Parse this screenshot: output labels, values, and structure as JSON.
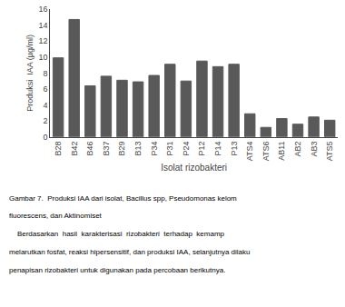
{
  "chart_data": {
    "type": "bar",
    "categories": [
      "B28",
      "B42",
      "B46",
      "B37",
      "B29",
      "B13",
      "P34",
      "P31",
      "P24",
      "P12",
      "P14",
      "P13",
      "ATS4",
      "ATS6",
      "AB11",
      "AB2",
      "AB3",
      "ATS5"
    ],
    "values": [
      9.9,
      14.7,
      6.4,
      7.6,
      7.1,
      6.9,
      7.7,
      9.1,
      7.0,
      9.5,
      8.8,
      9.1,
      2.9,
      1.2,
      2.3,
      1.6,
      2.5,
      2.1
    ],
    "color": "#595959",
    "xlabel": "Isolat rizobakteri",
    "ylabel": "Produksi  IAA (µg/ml)",
    "ylim": [
      0,
      16
    ],
    "yticks": [
      0,
      2,
      4,
      6,
      8,
      10,
      12,
      14,
      16
    ],
    "grid": false,
    "annotations": [
      "Gambar 7.  Produksi IAA dari isolat, Bacillus spp, Pseudomonas kelom",
      "fluorescens, dan Aktinomiset",
      "    Berdasarkan  hasil  karakterisasi  rizobakteri  terhadap  kemamp",
      "melarutkan fosfat, reaksi hipersensitif, dan produksi IAA, selanjutnya dilaku",
      "penapisan rizobakteri untuk digunakan pada percobaan berikutnya."
    ]
  }
}
